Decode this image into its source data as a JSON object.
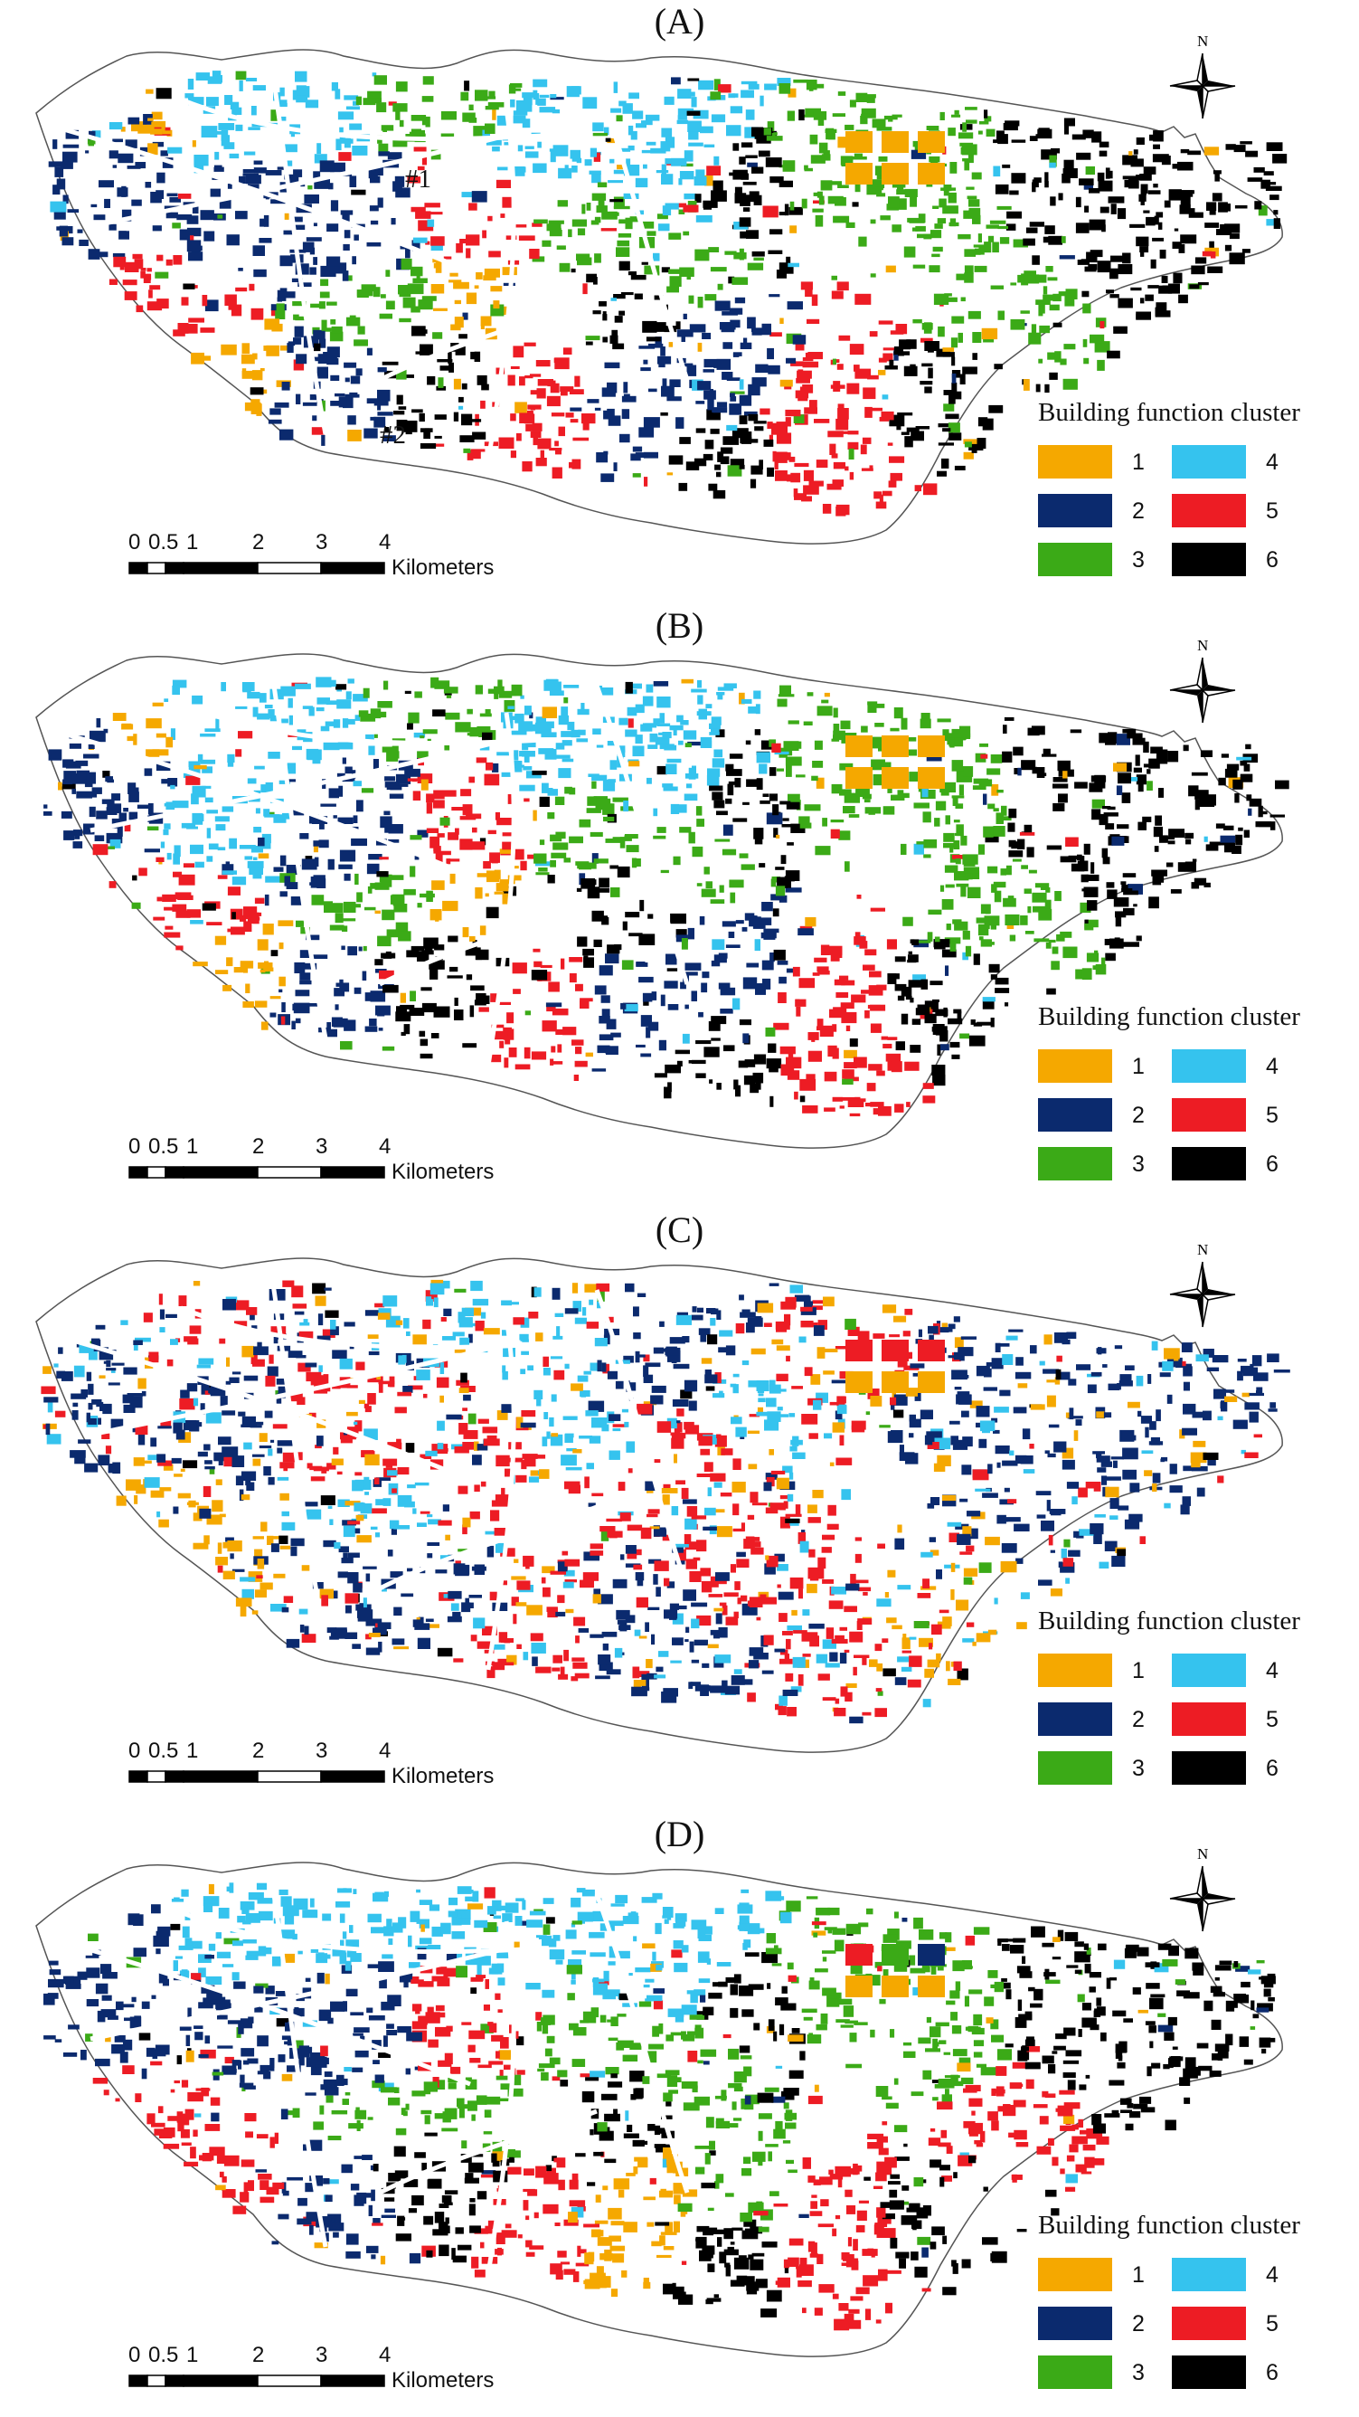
{
  "colors": {
    "1": "#F5A800",
    "2": "#0B2A6E",
    "3": "#3BAA17",
    "4": "#35C3EE",
    "5": "#ED1C24",
    "6": "#000000",
    "outline": "#555555"
  },
  "legend": {
    "title": "Building function cluster",
    "items": [
      {
        "label": "1",
        "color": "#F5A800"
      },
      {
        "label": "2",
        "color": "#0B2A6E"
      },
      {
        "label": "3",
        "color": "#3BAA17"
      },
      {
        "label": "4",
        "color": "#35C3EE"
      },
      {
        "label": "5",
        "color": "#ED1C24"
      },
      {
        "label": "6",
        "color": "#000000"
      }
    ]
  },
  "scale_bar": {
    "ticks": [
      "0",
      "0.5",
      "1",
      "2",
      "3",
      "4"
    ],
    "unit": "Kilometers"
  },
  "north_label": "N",
  "panels": [
    {
      "title": "(A)",
      "variant": 0,
      "tags": [
        "#1",
        "#2"
      ]
    },
    {
      "title": "(B)",
      "variant": 1,
      "tags": []
    },
    {
      "title": "(C)",
      "variant": 2,
      "tags": []
    },
    {
      "title": "(D)",
      "variant": 3,
      "tags": []
    }
  ]
}
